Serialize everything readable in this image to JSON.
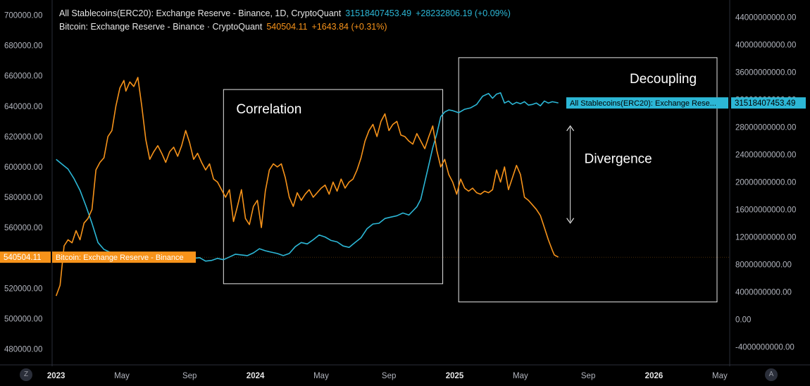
{
  "legend": {
    "stable": {
      "name": "All Stablecoins(ERC20): Exchange Reserve - Binance, 1D, CryptoQuant",
      "value": "31518407453.49",
      "change": "+28232806.19 (+0.09%)"
    },
    "btc": {
      "name": "Bitcoin: Exchange Reserve - Binance · CryptoQuant",
      "value": "540504.11",
      "change": "+1643.84 (+0.31%)"
    }
  },
  "colors": {
    "btc": "#f7931a",
    "stable": "#2cb7d6",
    "background": "#000000",
    "text": "#d1d4dc"
  },
  "annotations": {
    "correlation": "Correlation",
    "decoupling": "Decoupling",
    "divergence": "Divergence"
  },
  "bottom_buttons": {
    "left": "Z",
    "right": "A"
  },
  "chart_data": {
    "type": "line",
    "title": "",
    "xlabel": "",
    "ylabel": "",
    "x_ticks": [
      {
        "label": "2023",
        "t": 2023.0,
        "bold": true
      },
      {
        "label": "May",
        "t": 2023.33,
        "bold": false
      },
      {
        "label": "Sep",
        "t": 2023.67,
        "bold": false
      },
      {
        "label": "2024",
        "t": 2024.0,
        "bold": true
      },
      {
        "label": "May",
        "t": 2024.33,
        "bold": false
      },
      {
        "label": "Sep",
        "t": 2024.67,
        "bold": false
      },
      {
        "label": "2025",
        "t": 2025.0,
        "bold": true
      },
      {
        "label": "May",
        "t": 2025.33,
        "bold": false
      },
      {
        "label": "Sep",
        "t": 2025.67,
        "bold": false
      },
      {
        "label": "2026",
        "t": 2026.0,
        "bold": true
      },
      {
        "label": "May",
        "t": 2026.33,
        "bold": false
      }
    ],
    "xlim": [
      2022.98,
      2026.38
    ],
    "left_axis": {
      "ylim": [
        470000,
        710000
      ],
      "ticks": [
        "480000.00",
        "500000.00",
        "520000.00",
        "540000.00",
        "560000.00",
        "580000.00",
        "600000.00",
        "620000.00",
        "640000.00",
        "660000.00",
        "680000.00",
        "700000.00"
      ]
    },
    "right_axis": {
      "ylim": [
        -6500000000,
        46500000000
      ],
      "ticks": [
        "-4000000000.00",
        "0.00",
        "4000000000.00",
        "8000000000.00",
        "12000000000.00",
        "16000000000.00",
        "20000000000.00",
        "24000000000.00",
        "28000000000.00",
        "32000000000.00",
        "36000000000.00",
        "40000000000.00",
        "44000000000.00"
      ]
    },
    "series": [
      {
        "name": "Bitcoin: Exchange Reserve - Binance",
        "axis": "left",
        "last_value_label": "540504.11",
        "points": [
          [
            2023.0,
            515000
          ],
          [
            2023.02,
            522000
          ],
          [
            2023.04,
            548000
          ],
          [
            2023.06,
            552000
          ],
          [
            2023.08,
            550000
          ],
          [
            2023.1,
            558000
          ],
          [
            2023.12,
            552000
          ],
          [
            2023.14,
            563000
          ],
          [
            2023.16,
            566000
          ],
          [
            2023.18,
            572000
          ],
          [
            2023.2,
            598000
          ],
          [
            2023.22,
            603000
          ],
          [
            2023.24,
            606000
          ],
          [
            2023.26,
            620000
          ],
          [
            2023.28,
            624000
          ],
          [
            2023.3,
            640000
          ],
          [
            2023.32,
            652000
          ],
          [
            2023.34,
            657000
          ],
          [
            2023.35,
            650000
          ],
          [
            2023.37,
            656000
          ],
          [
            2023.39,
            653000
          ],
          [
            2023.41,
            659000
          ],
          [
            2023.43,
            640000
          ],
          [
            2023.45,
            618000
          ],
          [
            2023.47,
            605000
          ],
          [
            2023.49,
            610000
          ],
          [
            2023.51,
            614000
          ],
          [
            2023.53,
            609000
          ],
          [
            2023.55,
            603000
          ],
          [
            2023.57,
            610000
          ],
          [
            2023.59,
            613000
          ],
          [
            2023.61,
            607000
          ],
          [
            2023.63,
            614000
          ],
          [
            2023.65,
            624000
          ],
          [
            2023.67,
            616000
          ],
          [
            2023.69,
            605000
          ],
          [
            2023.71,
            609000
          ],
          [
            2023.73,
            603000
          ],
          [
            2023.75,
            598000
          ],
          [
            2023.77,
            602000
          ],
          [
            2023.79,
            592000
          ],
          [
            2023.81,
            590000
          ],
          [
            2023.83,
            585000
          ],
          [
            2023.85,
            580000
          ],
          [
            2023.87,
            585000
          ],
          [
            2023.89,
            564000
          ],
          [
            2023.91,
            574000
          ],
          [
            2023.93,
            585000
          ],
          [
            2023.95,
            566000
          ],
          [
            2023.97,
            562000
          ],
          [
            2023.99,
            574000
          ],
          [
            2024.01,
            578000
          ],
          [
            2024.03,
            560000
          ],
          [
            2024.05,
            584000
          ],
          [
            2024.07,
            598000
          ],
          [
            2024.09,
            602000
          ],
          [
            2024.11,
            600000
          ],
          [
            2024.13,
            602000
          ],
          [
            2024.15,
            593000
          ],
          [
            2024.17,
            580000
          ],
          [
            2024.19,
            574000
          ],
          [
            2024.21,
            583000
          ],
          [
            2024.23,
            578000
          ],
          [
            2024.25,
            582000
          ],
          [
            2024.27,
            585000
          ],
          [
            2024.29,
            580000
          ],
          [
            2024.31,
            583000
          ],
          [
            2024.33,
            586000
          ],
          [
            2024.35,
            588000
          ],
          [
            2024.37,
            582000
          ],
          [
            2024.39,
            590000
          ],
          [
            2024.41,
            584000
          ],
          [
            2024.43,
            592000
          ],
          [
            2024.45,
            586000
          ],
          [
            2024.47,
            590000
          ],
          [
            2024.49,
            592000
          ],
          [
            2024.51,
            598000
          ],
          [
            2024.53,
            606000
          ],
          [
            2024.55,
            617000
          ],
          [
            2024.57,
            624000
          ],
          [
            2024.59,
            628000
          ],
          [
            2024.61,
            620000
          ],
          [
            2024.63,
            630000
          ],
          [
            2024.65,
            635000
          ],
          [
            2024.67,
            624000
          ],
          [
            2024.69,
            628000
          ],
          [
            2024.71,
            630000
          ],
          [
            2024.73,
            621000
          ],
          [
            2024.75,
            620000
          ],
          [
            2024.77,
            617000
          ],
          [
            2024.79,
            615000
          ],
          [
            2024.81,
            622000
          ],
          [
            2024.83,
            617000
          ],
          [
            2024.85,
            612000
          ],
          [
            2024.87,
            620000
          ],
          [
            2024.89,
            627000
          ],
          [
            2024.91,
            611000
          ],
          [
            2024.93,
            600000
          ],
          [
            2024.95,
            605000
          ],
          [
            2024.97,
            595000
          ],
          [
            2024.99,
            590000
          ],
          [
            2025.01,
            582000
          ],
          [
            2025.03,
            592000
          ],
          [
            2025.05,
            586000
          ],
          [
            2025.07,
            584000
          ],
          [
            2025.09,
            586000
          ],
          [
            2025.11,
            583000
          ],
          [
            2025.13,
            582000
          ],
          [
            2025.15,
            584000
          ],
          [
            2025.17,
            583000
          ],
          [
            2025.19,
            585000
          ],
          [
            2025.21,
            598000
          ],
          [
            2025.23,
            590000
          ],
          [
            2025.25,
            600000
          ],
          [
            2025.27,
            585000
          ],
          [
            2025.29,
            593000
          ],
          [
            2025.31,
            601000
          ],
          [
            2025.33,
            595000
          ],
          [
            2025.35,
            580000
          ],
          [
            2025.37,
            578000
          ],
          [
            2025.39,
            575000
          ],
          [
            2025.41,
            572000
          ],
          [
            2025.43,
            568000
          ],
          [
            2025.45,
            560000
          ],
          [
            2025.47,
            552000
          ],
          [
            2025.49,
            545000
          ],
          [
            2025.5,
            542000
          ],
          [
            2025.52,
            540504
          ]
        ]
      },
      {
        "name": "All Stablecoins(ERC20): Exchange Reserve - Binance",
        "axis": "right",
        "last_value_label": "31518407453.49",
        "points": [
          [
            2023.0,
            23300000000
          ],
          [
            2023.03,
            22600000000
          ],
          [
            2023.06,
            21900000000
          ],
          [
            2023.09,
            20500000000
          ],
          [
            2023.12,
            18800000000
          ],
          [
            2023.15,
            16500000000
          ],
          [
            2023.18,
            14000000000
          ],
          [
            2023.21,
            11200000000
          ],
          [
            2023.24,
            10200000000
          ],
          [
            2023.27,
            9800000000
          ],
          [
            2023.3,
            9500000000
          ],
          [
            2023.33,
            9100000000
          ],
          [
            2023.36,
            9000000000
          ],
          [
            2023.39,
            9300000000
          ],
          [
            2023.42,
            8900000000
          ],
          [
            2023.45,
            9300000000
          ],
          [
            2023.48,
            9600000000
          ],
          [
            2023.51,
            9300000000
          ],
          [
            2023.54,
            9200000000
          ],
          [
            2023.57,
            9400000000
          ],
          [
            2023.6,
            9200000000
          ],
          [
            2023.63,
            9100000000
          ],
          [
            2023.66,
            9000000000
          ],
          [
            2023.69,
            8900000000
          ],
          [
            2023.72,
            9000000000
          ],
          [
            2023.75,
            8500000000
          ],
          [
            2023.78,
            8600000000
          ],
          [
            2023.81,
            8900000000
          ],
          [
            2023.84,
            8700000000
          ],
          [
            2023.87,
            9100000000
          ],
          [
            2023.9,
            9500000000
          ],
          [
            2023.93,
            9400000000
          ],
          [
            2023.96,
            9300000000
          ],
          [
            2023.99,
            9700000000
          ],
          [
            2024.02,
            10300000000
          ],
          [
            2024.05,
            10000000000
          ],
          [
            2024.08,
            9800000000
          ],
          [
            2024.11,
            9600000000
          ],
          [
            2024.14,
            9300000000
          ],
          [
            2024.17,
            9600000000
          ],
          [
            2024.2,
            10600000000
          ],
          [
            2024.23,
            11200000000
          ],
          [
            2024.26,
            11000000000
          ],
          [
            2024.29,
            11600000000
          ],
          [
            2024.32,
            12300000000
          ],
          [
            2024.35,
            12000000000
          ],
          [
            2024.38,
            11500000000
          ],
          [
            2024.41,
            11300000000
          ],
          [
            2024.44,
            10700000000
          ],
          [
            2024.47,
            10500000000
          ],
          [
            2024.5,
            11200000000
          ],
          [
            2024.53,
            11900000000
          ],
          [
            2024.56,
            13200000000
          ],
          [
            2024.59,
            13900000000
          ],
          [
            2024.62,
            14000000000
          ],
          [
            2024.65,
            14700000000
          ],
          [
            2024.68,
            14900000000
          ],
          [
            2024.71,
            15100000000
          ],
          [
            2024.74,
            15500000000
          ],
          [
            2024.77,
            15200000000
          ],
          [
            2024.79,
            15800000000
          ],
          [
            2024.81,
            16400000000
          ],
          [
            2024.83,
            17500000000
          ],
          [
            2024.85,
            20000000000
          ],
          [
            2024.87,
            22500000000
          ],
          [
            2024.89,
            25000000000
          ],
          [
            2024.91,
            27000000000
          ],
          [
            2024.93,
            29500000000
          ],
          [
            2024.95,
            30200000000
          ],
          [
            2024.97,
            30500000000
          ],
          [
            2024.99,
            30400000000
          ],
          [
            2025.02,
            30100000000
          ],
          [
            2025.05,
            30600000000
          ],
          [
            2025.08,
            30800000000
          ],
          [
            2025.11,
            31300000000
          ],
          [
            2025.14,
            32500000000
          ],
          [
            2025.17,
            32900000000
          ],
          [
            2025.19,
            32200000000
          ],
          [
            2025.21,
            32800000000
          ],
          [
            2025.23,
            33000000000
          ],
          [
            2025.25,
            31500000000
          ],
          [
            2025.27,
            31800000000
          ],
          [
            2025.29,
            31300000000
          ],
          [
            2025.31,
            31600000000
          ],
          [
            2025.33,
            31400000000
          ],
          [
            2025.35,
            31700000000
          ],
          [
            2025.37,
            31200000000
          ],
          [
            2025.39,
            31300000000
          ],
          [
            2025.41,
            31500000000
          ],
          [
            2025.43,
            31100000000
          ],
          [
            2025.45,
            31800000000
          ],
          [
            2025.47,
            31500000000
          ],
          [
            2025.49,
            31700000000
          ],
          [
            2025.52,
            31518407453
          ]
        ]
      }
    ],
    "regions": [
      {
        "label_key": "correlation",
        "t0": 2023.84,
        "t1": 2024.94,
        "v0": 523000,
        "v1": 651000,
        "axis": "left"
      },
      {
        "label_key": "decoupling",
        "t0": 2025.02,
        "t1": 2026.38,
        "v0": 511000,
        "v1": 672000,
        "axis": "left"
      }
    ],
    "divergence_arrow": {
      "t": 2025.58,
      "v_top": 627000,
      "v_bottom": 563000,
      "axis": "left"
    }
  }
}
